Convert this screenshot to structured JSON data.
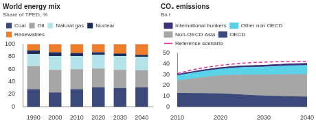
{
  "chart_data": [
    {
      "type": "bar",
      "title": "World energy mix",
      "subtitle": "Share of TPED, %",
      "stacked": true,
      "legend": "top",
      "grid": false,
      "categories": [
        "1990",
        "2000",
        "2010",
        "2020",
        "2030",
        "2040"
      ],
      "series": [
        {
          "name": "Coal",
          "color": "#3b4a7a",
          "values": [
            28,
            23,
            28,
            31,
            30,
            31
          ]
        },
        {
          "name": "Oil",
          "color": "#a6a6a6",
          "values": [
            37,
            36,
            32,
            30,
            29,
            27
          ]
        },
        {
          "name": "Natural gas",
          "color": "#b5e3ea",
          "values": [
            19,
            22,
            21,
            22,
            22,
            22
          ]
        },
        {
          "name": "Nuclear",
          "color": "#1f2d5a",
          "values": [
            6,
            6,
            5,
            4,
            4,
            3
          ]
        },
        {
          "name": "Renewables",
          "color": "#f07d2a",
          "values": [
            10,
            13,
            14,
            13,
            15,
            17
          ]
        }
      ],
      "ylim": [
        0,
        100
      ],
      "yticks": [
        0,
        20,
        40,
        60,
        80,
        100
      ]
    },
    {
      "type": "area",
      "title": "CO₂ emissions",
      "subtitle": "Bn t",
      "stacked": true,
      "legend": "top",
      "grid": false,
      "x": [
        2010,
        2015,
        2020,
        2025,
        2030,
        2035,
        2040
      ],
      "series": [
        {
          "name": "OECD",
          "color": "#3b4a7a",
          "values": [
            12.5,
            12.3,
            12,
            11,
            10,
            9.5,
            9
          ]
        },
        {
          "name": "Non-OECD Asia",
          "color": "#a6a6a6",
          "values": [
            11.5,
            14.5,
            17,
            18.5,
            19.5,
            20.5,
            21
          ]
        },
        {
          "name": "Other non OECD",
          "color": "#5ad3e8",
          "values": [
            5,
            5.5,
            6,
            7,
            7.5,
            8,
            8.5
          ]
        },
        {
          "name": "International bunkers",
          "color": "#3d2f78",
          "values": [
            1.2,
            1.3,
            1.4,
            1.5,
            1.6,
            1.7,
            1.8
          ]
        },
        {
          "name": "Reference scenario",
          "color": "#e0309a",
          "type": "line",
          "line_style": "dashed",
          "values": [
            31,
            35.5,
            38.5,
            40.5,
            41.5,
            42,
            42.3
          ]
        }
      ],
      "xlim": [
        2010,
        2040
      ],
      "xticks": [
        2010,
        2020,
        2030,
        2040
      ],
      "ylim": [
        0,
        50
      ],
      "yticks": [
        0,
        10,
        20,
        30,
        40,
        50
      ]
    }
  ]
}
